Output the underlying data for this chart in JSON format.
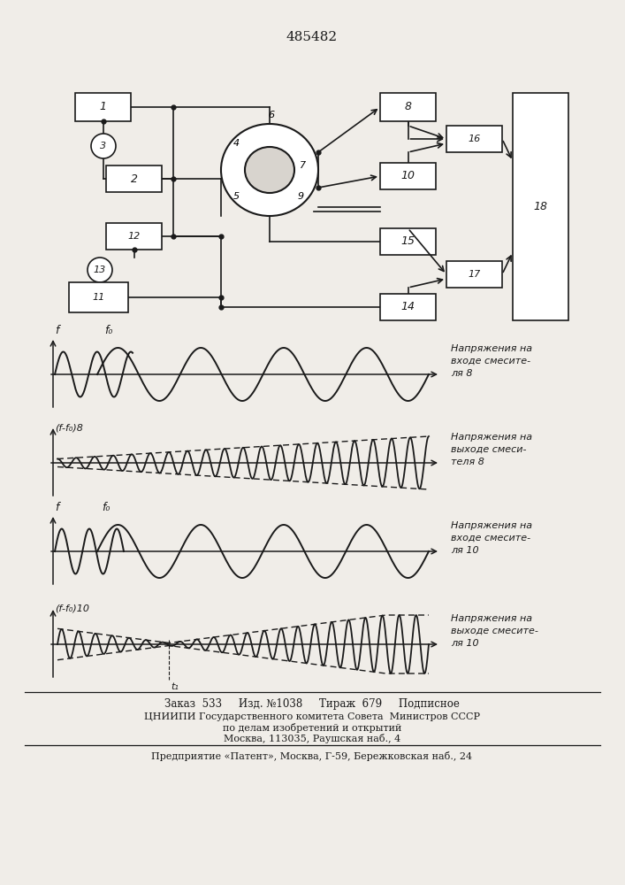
{
  "title": "485482",
  "bg_color": "#f0ede8",
  "line_color": "#1a1a1a",
  "footer_line1": "Заказ  533     Изд. №1038     Тираж  679     Подписное",
  "footer_line2": "ЦНИИПИ Государственного комитета Совета  Министров СССР",
  "footer_line3": "по делам изобретений и открытий",
  "footer_line4": "Москва, 113035, Раушская наб., 4",
  "footer_line5": "Предприятие «Патент», Москва, Г-59, Бережковская наб., 24",
  "label1": "Напряжения на\nвходе смесите-\nля 8",
  "label2": "Напряжения на\nвыходе смеси-\nтеля 8",
  "label3": "Напряжения на\nвходе смесите-\nля 10",
  "label4": "Напряжения на\nвыходе смесите-\nля 10"
}
